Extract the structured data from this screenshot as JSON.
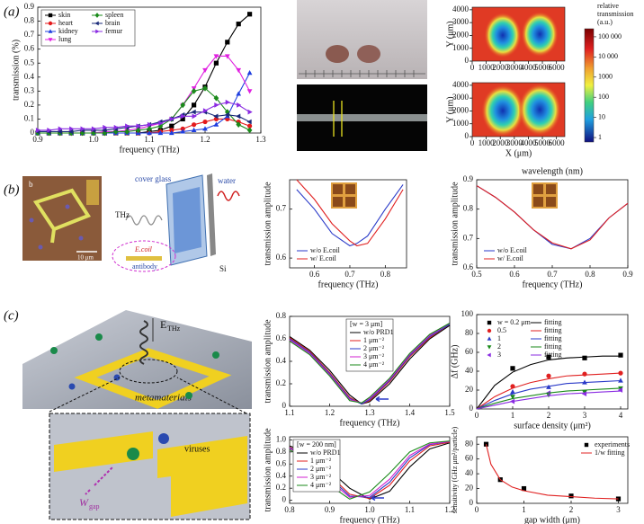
{
  "panel_labels": [
    "(a)",
    "(b)",
    "(c)"
  ],
  "illustrations": {
    "sem_label": "b",
    "scale_bar": "10 μm",
    "thz": "THz",
    "cover_glass": "cover glass",
    "water": "water",
    "ecoli": "E.coil",
    "antibody": "antibody",
    "si": "Si",
    "field": "E",
    "field_sub": "THz",
    "metamaterials": "metamaterials",
    "viruses": "viruses",
    "gap": "W",
    "gap_sub": "gap"
  },
  "chart_data": [
    {
      "type": "line",
      "xlabel": "frequency (THz)",
      "ylabel": "transmission (%)",
      "x": [
        0.9,
        0.92,
        0.94,
        0.96,
        0.98,
        1.0,
        1.02,
        1.04,
        1.06,
        1.08,
        1.1,
        1.12,
        1.14,
        1.16,
        1.18,
        1.2,
        1.22,
        1.24,
        1.26,
        1.28
      ],
      "xlim": [
        0.9,
        1.3
      ],
      "xticks": [
        0.9,
        {
          "value": 1,
          "label": "1.0"
        },
        1.1,
        1.2,
        1.3
      ],
      "ylim": [
        0,
        0.9
      ],
      "yticks": [
        0,
        0.1,
        0.2,
        0.3,
        0.4,
        0.5,
        0.6,
        0.7,
        0.8,
        0.9
      ],
      "legend": "upper left",
      "legend_frame": true,
      "series": [
        {
          "name": "skin",
          "color": "#000000",
          "marker": "square",
          "style": "line+markers",
          "values": [
            0,
            0,
            0,
            0,
            0,
            0,
            0,
            0,
            0,
            0,
            0.01,
            0.02,
            0.05,
            0.1,
            0.2,
            0.33,
            0.5,
            0.65,
            0.78,
            0.85
          ]
        },
        {
          "name": "heart",
          "color": "#e41a1c",
          "marker": "circle",
          "style": "line+markers",
          "values": [
            0,
            0,
            0,
            0,
            0,
            0,
            0,
            0,
            0,
            0,
            0,
            0.01,
            0.02,
            0.03,
            0.06,
            0.08,
            0.1,
            0.1,
            0.08,
            0.05
          ]
        },
        {
          "name": "kidney",
          "color": "#1f3fdf",
          "marker": "triangle-up",
          "style": "line+markers",
          "values": [
            0,
            0,
            0,
            0,
            0,
            0,
            0,
            0,
            0,
            0,
            0,
            0,
            0,
            0.01,
            0.02,
            0.03,
            0.06,
            0.12,
            0.28,
            0.43
          ]
        },
        {
          "name": "lung",
          "color": "#e020e0",
          "marker": "triangle-down",
          "style": "line+markers",
          "values": [
            0,
            0,
            0,
            0,
            0,
            0,
            0.01,
            0.01,
            0.02,
            0.03,
            0.05,
            0.07,
            0.1,
            0.2,
            0.32,
            0.45,
            0.55,
            0.55,
            0.45,
            0.3
          ]
        },
        {
          "name": "spleen",
          "color": "#1a8a1a",
          "marker": "diamond",
          "style": "line+markers",
          "values": [
            0,
            0,
            0,
            0,
            0,
            0,
            0,
            0.01,
            0.01,
            0.02,
            0.03,
            0.05,
            0.1,
            0.2,
            0.3,
            0.32,
            0.25,
            0.15,
            0.06,
            0.02
          ]
        },
        {
          "name": "brain",
          "color": "#1a2a7a",
          "marker": "triangle-left",
          "style": "line+markers",
          "values": [
            0.01,
            0.01,
            0.01,
            0.01,
            0.02,
            0.02,
            0.02,
            0.03,
            0.04,
            0.05,
            0.06,
            0.08,
            0.1,
            0.13,
            0.15,
            0.15,
            0.12,
            0.13,
            0.12,
            0.08
          ]
        },
        {
          "name": "femur",
          "color": "#8a2be2",
          "marker": "triangle-right",
          "style": "line+markers",
          "values": [
            0.02,
            0.02,
            0.03,
            0.03,
            0.03,
            0.03,
            0.04,
            0.04,
            0.05,
            0.05,
            0.06,
            0.07,
            0.1,
            0.12,
            0.12,
            0.16,
            0.2,
            0.22,
            0.2,
            0.15
          ]
        }
      ]
    },
    {
      "type": "heatmap",
      "ylabel": "Y (μm)",
      "xlim": [
        0,
        6600
      ],
      "xticks": [
        0,
        1000,
        2000,
        3000,
        4000,
        5000,
        6000
      ],
      "ylim": [
        0,
        4200
      ],
      "yticks": [
        0,
        1000,
        2000,
        3000,
        4000
      ]
    },
    {
      "type": "heatmap",
      "ylabel": "Y (μm)",
      "xlabel": "X (μm)",
      "xlim": [
        0,
        6600
      ],
      "xticks": [
        0,
        1000,
        2000,
        3000,
        4000,
        5000,
        6000
      ],
      "ylim": [
        0,
        4200
      ],
      "yticks": [
        0,
        1000,
        2000,
        3000,
        4000
      ]
    },
    {
      "type": "colorbar",
      "title": "relative transmission (a.u.)",
      "log": true,
      "ylim": [
        0.6,
        250000
      ],
      "yticks": [
        {
          "value": 100000,
          "label": "100 000"
        },
        {
          "value": 10000,
          "label": "10 000"
        },
        1000,
        100,
        10,
        1
      ]
    },
    {
      "type": "line",
      "xlabel": "frequency (THz)",
      "ylabel": "transmission amplitude",
      "x": [
        0.55,
        0.6,
        0.65,
        0.7,
        0.72,
        0.75,
        0.8,
        0.85
      ],
      "xlim": [
        0.53,
        0.86
      ],
      "xticks": [
        0.6,
        0.7,
        0.8
      ],
      "ylim": [
        0.58,
        0.76
      ],
      "yticks": [
        0.6,
        0.7
      ],
      "legend": "lower left",
      "legend_frame": false,
      "series": [
        {
          "name": "w/o E.coil",
          "color": "#2a3ac8",
          "values": [
            0.74,
            0.7,
            0.65,
            0.625,
            0.63,
            0.645,
            0.7,
            0.75
          ]
        },
        {
          "name": "w/ E.coil",
          "color": "#e02020",
          "values": [
            0.76,
            0.72,
            0.67,
            0.635,
            0.625,
            0.63,
            0.68,
            0.74
          ]
        }
      ]
    },
    {
      "type": "line",
      "xlabel": "frequency (THz)",
      "ylabel": "transmission amplitude",
      "x2label": "wavelength (nm)",
      "x": [
        0.5,
        0.55,
        0.6,
        0.65,
        0.7,
        0.75,
        0.8,
        0.85,
        0.9
      ],
      "xlim": [
        0.5,
        0.9
      ],
      "xticks": [
        0.5,
        0.6,
        0.7,
        0.8,
        0.9
      ],
      "ylim": [
        0.6,
        0.9
      ],
      "yticks": [
        0.6,
        0.7,
        0.8,
        0.9
      ],
      "legend": "lower left",
      "legend_frame": false,
      "series": [
        {
          "name": "w/o E.coil",
          "color": "#2a3ac8",
          "values": [
            0.88,
            0.84,
            0.79,
            0.73,
            0.68,
            0.665,
            0.7,
            0.77,
            0.82
          ]
        },
        {
          "name": "w/ E.coil",
          "color": "#e02020",
          "values": [
            0.88,
            0.84,
            0.79,
            0.73,
            0.685,
            0.665,
            0.695,
            0.77,
            0.82
          ]
        }
      ]
    },
    {
      "type": "line",
      "xlabel": "frequency (THz)",
      "ylabel": "transmission amplitude",
      "legend_title": "[w = 3 μm]",
      "x": [
        1.1,
        1.15,
        1.2,
        1.25,
        1.28,
        1.3,
        1.35,
        1.4,
        1.45,
        1.5
      ],
      "xlim": [
        1.1,
        1.5
      ],
      "xticks": [
        1.1,
        1.2,
        1.3,
        1.4,
        1.5
      ],
      "ylim": [
        0,
        0.8
      ],
      "yticks": [
        0,
        0.2,
        0.4,
        0.6,
        0.8
      ],
      "legend": "upper center",
      "legend_frame": true,
      "series": [
        {
          "name": "w/o PRD1",
          "color": "#000000",
          "values": [
            0.62,
            0.5,
            0.32,
            0.1,
            0.02,
            0.04,
            0.2,
            0.42,
            0.6,
            0.72
          ]
        },
        {
          "name": "1 μm⁻²",
          "color": "#e02020",
          "values": [
            0.61,
            0.49,
            0.3,
            0.08,
            0.02,
            0.05,
            0.22,
            0.44,
            0.61,
            0.73
          ]
        },
        {
          "name": "2 μm⁻²",
          "color": "#2a3ac8",
          "values": [
            0.6,
            0.48,
            0.29,
            0.07,
            0.02,
            0.06,
            0.23,
            0.45,
            0.62,
            0.73
          ]
        },
        {
          "name": "3 μm⁻²",
          "color": "#d020d0",
          "values": [
            0.59,
            0.47,
            0.28,
            0.06,
            0.03,
            0.07,
            0.24,
            0.46,
            0.63,
            0.74
          ]
        },
        {
          "name": "4 μm⁻²",
          "color": "#1a8a1a",
          "values": [
            0.58,
            0.46,
            0.27,
            0.05,
            0.03,
            0.08,
            0.25,
            0.47,
            0.64,
            0.74
          ]
        }
      ]
    },
    {
      "type": "scatter",
      "xlabel": "surface density (μm²)",
      "ylabel": "Δf (GHz)",
      "xlim": [
        0,
        4.2
      ],
      "xticks": [
        0,
        1,
        2,
        3,
        4
      ],
      "ylim": [
        0,
        100
      ],
      "yticks": [
        0,
        20,
        40,
        60,
        80,
        100
      ],
      "legend": "upper left",
      "legend_frame": false,
      "series": [
        {
          "name": "w = 0.2 μm",
          "color": "#000000",
          "marker": "square",
          "style": "markers",
          "x": [
            1,
            2,
            3,
            4
          ],
          "values": [
            43,
            55,
            54,
            57
          ]
        },
        {
          "name": "0.5",
          "color": "#e02020",
          "marker": "circle",
          "style": "markers",
          "x": [
            1,
            2,
            3,
            4
          ],
          "values": [
            24,
            35,
            37,
            38
          ]
        },
        {
          "name": "1",
          "color": "#2a3ac8",
          "marker": "triangle-up",
          "style": "markers",
          "x": [
            1,
            2,
            3,
            4
          ],
          "values": [
            18,
            23,
            28,
            30
          ]
        },
        {
          "name": "2",
          "color": "#1a8a1a",
          "marker": "triangle-down",
          "style": "markers",
          "x": [
            1,
            2,
            3,
            4
          ],
          "values": [
            13,
            15,
            18,
            22
          ]
        },
        {
          "name": "3",
          "color": "#8a2be2",
          "marker": "triangle-left",
          "style": "markers",
          "x": [
            1,
            2,
            3,
            4
          ],
          "values": [
            8,
            17,
            16,
            20
          ]
        },
        {
          "name": "fitting",
          "color": "#000000",
          "style": "line",
          "x": [
            0,
            0.5,
            1,
            1.5,
            2,
            2.5,
            3,
            3.5,
            4
          ],
          "values": [
            0,
            25,
            39,
            47,
            52,
            54,
            55,
            56,
            56
          ]
        },
        {
          "name": "fitting",
          "color": "#e02020",
          "style": "line",
          "x": [
            0,
            0.5,
            1,
            1.5,
            2,
            2.5,
            3,
            3.5,
            4
          ],
          "values": [
            0,
            13,
            22,
            28,
            32,
            35,
            36,
            37,
            38
          ]
        },
        {
          "name": "fitting",
          "color": "#2a3ac8",
          "style": "line",
          "x": [
            0,
            0.5,
            1,
            1.5,
            2,
            2.5,
            3,
            3.5,
            4
          ],
          "values": [
            0,
            9,
            16,
            21,
            24,
            27,
            28,
            29,
            30
          ]
        },
        {
          "name": "fitting",
          "color": "#1a8a1a",
          "style": "line",
          "x": [
            0,
            0.5,
            1,
            1.5,
            2,
            2.5,
            3,
            3.5,
            4
          ],
          "values": [
            0,
            6,
            11,
            14,
            17,
            19,
            20,
            21,
            22
          ]
        },
        {
          "name": "fitting",
          "color": "#8a2be2",
          "style": "line",
          "x": [
            0,
            0.5,
            1,
            1.5,
            2,
            2.5,
            3,
            3.5,
            4
          ],
          "values": [
            0,
            4,
            8,
            11,
            14,
            16,
            17,
            18,
            19
          ]
        }
      ]
    },
    {
      "type": "line",
      "xlabel": "frequency (THz)",
      "ylabel": "transmission amplitude",
      "legend_title": "[w = 200 nm]",
      "x": [
        0.8,
        0.85,
        0.9,
        0.95,
        1.0,
        1.05,
        1.1,
        1.15,
        1.2
      ],
      "xlim": [
        0.8,
        1.2
      ],
      "xticks": [
        0.8,
        0.9,
        {
          "value": 1,
          "label": "1.0"
        },
        1.1,
        1.2
      ],
      "ylim": [
        -0.05,
        1.05
      ],
      "yticks": [
        0,
        0.2,
        0.4,
        0.6,
        0.8,
        {
          "value": 1,
          "label": "1.0"
        }
      ],
      "legend": "upper left",
      "legend_frame": true,
      "series": [
        {
          "name": "w/o PRD1",
          "color": "#000000",
          "values": [
            0.9,
            0.78,
            0.5,
            0.2,
            0.02,
            0.15,
            0.55,
            0.85,
            0.95
          ]
        },
        {
          "name": "1 μm⁻²",
          "color": "#e02020",
          "values": [
            0.88,
            0.72,
            0.42,
            0.1,
            0.03,
            0.25,
            0.65,
            0.9,
            0.96
          ]
        },
        {
          "name": "2 μm⁻²",
          "color": "#2a3ac8",
          "values": [
            0.87,
            0.7,
            0.38,
            0.07,
            0.05,
            0.3,
            0.7,
            0.92,
            0.97
          ]
        },
        {
          "name": "3 μm⁻²",
          "color": "#d020d0",
          "values": [
            0.86,
            0.67,
            0.33,
            0.05,
            0.08,
            0.35,
            0.74,
            0.93,
            0.97
          ]
        },
        {
          "name": "4 μm⁻²",
          "color": "#1a8a1a",
          "values": [
            0.84,
            0.62,
            0.25,
            0.02,
            0.14,
            0.45,
            0.8,
            0.95,
            0.98
          ]
        }
      ]
    },
    {
      "type": "scatter",
      "xlabel": "gap width (μm)",
      "ylabel": "sensitivity (GHz μm²/particle)",
      "xlim": [
        0,
        3.2
      ],
      "xticks": [
        0,
        1,
        2,
        3
      ],
      "ylim": [
        0,
        90
      ],
      "yticks": [
        0,
        20,
        40,
        60,
        80
      ],
      "legend": "upper right",
      "legend_frame": false,
      "series": [
        {
          "name": "experiments",
          "color": "#000000",
          "marker": "square",
          "style": "markers",
          "x": [
            0.2,
            0.5,
            1,
            2,
            3
          ],
          "values": [
            80,
            32,
            20,
            10,
            6
          ]
        },
        {
          "name": "1/w fitting",
          "color": "#e02020",
          "style": "line",
          "x": [
            0.2,
            0.3,
            0.5,
            0.75,
            1,
            1.5,
            2,
            2.5,
            3
          ],
          "values": [
            80,
            53,
            32,
            22,
            17,
            11,
            9,
            7,
            6
          ]
        }
      ]
    }
  ]
}
